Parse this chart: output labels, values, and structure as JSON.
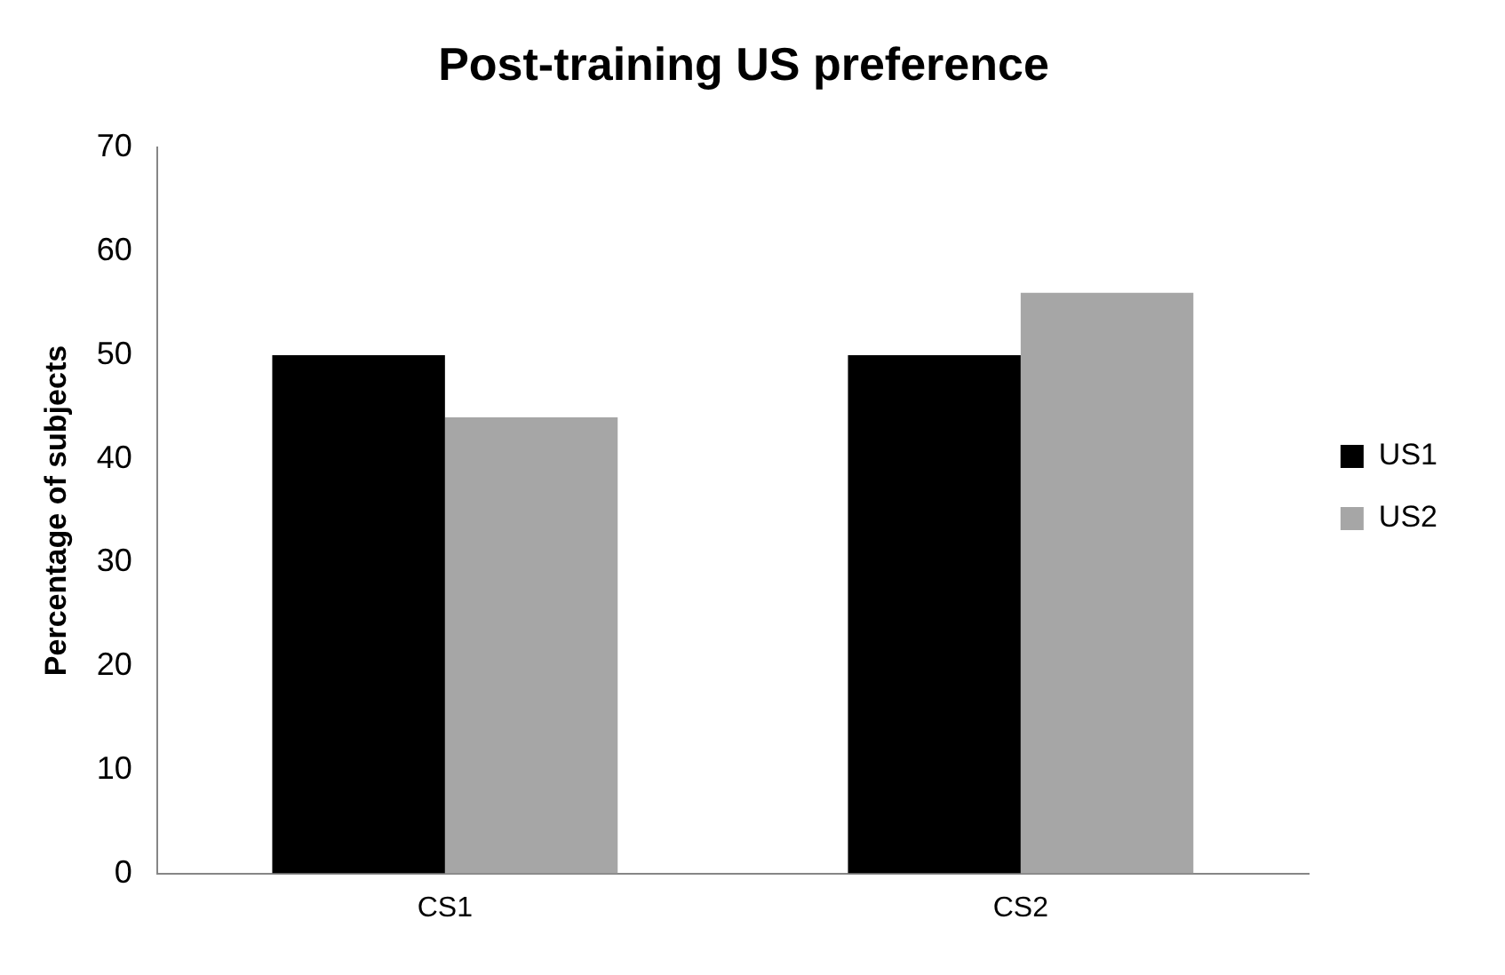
{
  "chart_data": {
    "type": "bar",
    "title": "Post-training US preference",
    "ylabel": "Percentage of subjects",
    "categories": [
      "CS1",
      "CS2"
    ],
    "series": [
      {
        "name": "US1",
        "color": "#000000",
        "values": [
          50,
          50
        ]
      },
      {
        "name": "US2",
        "color": "#a6a6a6",
        "values": [
          44,
          56
        ]
      }
    ],
    "ylim": [
      0,
      70
    ],
    "yticks": [
      0,
      10,
      20,
      30,
      40,
      50,
      60,
      70
    ],
    "grid": false,
    "legend": "right"
  }
}
